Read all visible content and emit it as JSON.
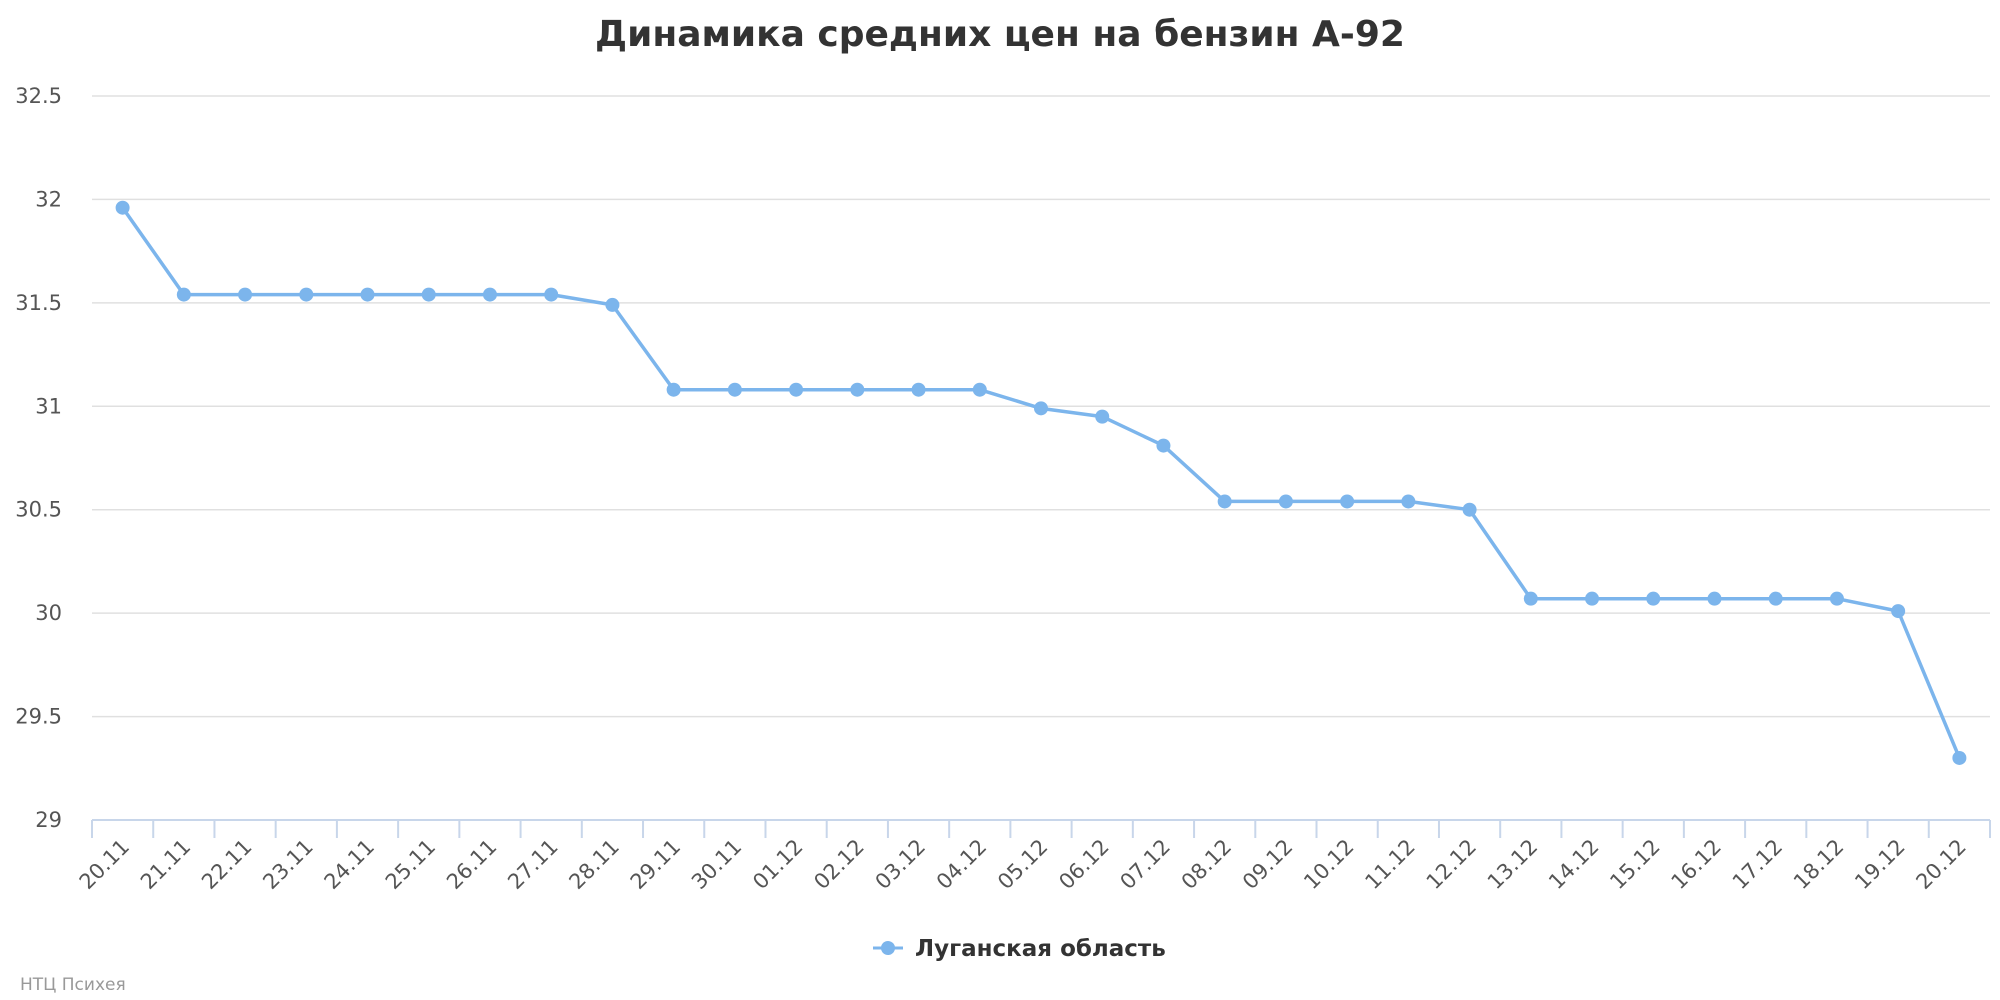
{
  "colors": {
    "series": "#7cb5ec",
    "grid": "#e0e0e0",
    "axis": "#c8d6ea",
    "text": "#333333",
    "tick_text": "#555555",
    "credit": "#999999"
  },
  "credit": "НТЦ Психея",
  "chart_data": {
    "type": "line",
    "title": "Динамика средних цен на бензин А-92",
    "xlabel": "",
    "ylabel": "",
    "ylim": [
      29,
      32.5
    ],
    "yticks": [
      "29",
      "29.5",
      "30",
      "30.5",
      "31",
      "31.5",
      "32",
      "32.5"
    ],
    "grid": true,
    "legend_position": "bottom-center",
    "categories": [
      "20.11",
      "21.11",
      "22.11",
      "23.11",
      "24.11",
      "25.11",
      "26.11",
      "27.11",
      "28.11",
      "29.11",
      "30.11",
      "01.12",
      "02.12",
      "03.12",
      "04.12",
      "05.12",
      "06.12",
      "07.12",
      "08.12",
      "09.12",
      "10.12",
      "11.12",
      "12.12",
      "13.12",
      "14.12",
      "15.12",
      "16.12",
      "17.12",
      "18.12",
      "19.12",
      "20.12"
    ],
    "series": [
      {
        "name": "Луганская область",
        "values": [
          31.96,
          31.54,
          31.54,
          31.54,
          31.54,
          31.54,
          31.54,
          31.54,
          31.49,
          31.08,
          31.08,
          31.08,
          31.08,
          31.08,
          31.08,
          30.99,
          30.95,
          30.81,
          30.54,
          30.54,
          30.54,
          30.54,
          30.5,
          30.07,
          30.07,
          30.07,
          30.07,
          30.07,
          30.07,
          30.01,
          29.3
        ]
      }
    ]
  }
}
